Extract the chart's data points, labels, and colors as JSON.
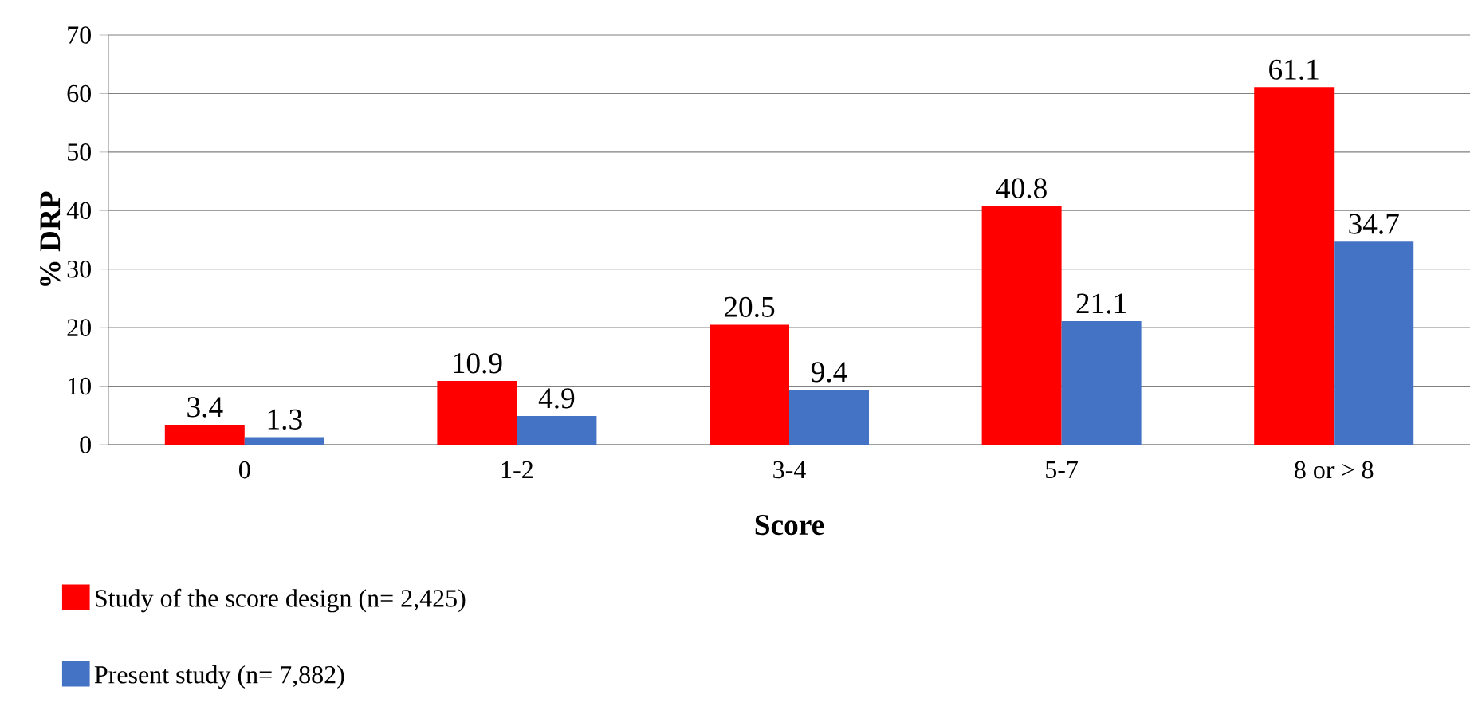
{
  "chart_data": {
    "type": "bar",
    "xlabel": "Score",
    "ylabel": "% DRP",
    "categories": [
      "0",
      "1-2",
      "3-4",
      "5-7",
      "8 or > 8"
    ],
    "series": [
      {
        "name": "Study of the score design (n= 2,425)",
        "color": "#ff0000",
        "values": [
          3.4,
          10.9,
          20.5,
          40.8,
          61.1
        ]
      },
      {
        "name": "Present study (n= 7,882)",
        "color": "#4472c4",
        "values": [
          1.3,
          4.9,
          9.4,
          21.1,
          34.7
        ]
      }
    ],
    "ylim": [
      0,
      70
    ],
    "yticks": [
      0,
      10,
      20,
      30,
      40,
      50,
      60,
      70
    ],
    "grid": "y",
    "legend": "bottom left",
    "data_labels": true
  }
}
